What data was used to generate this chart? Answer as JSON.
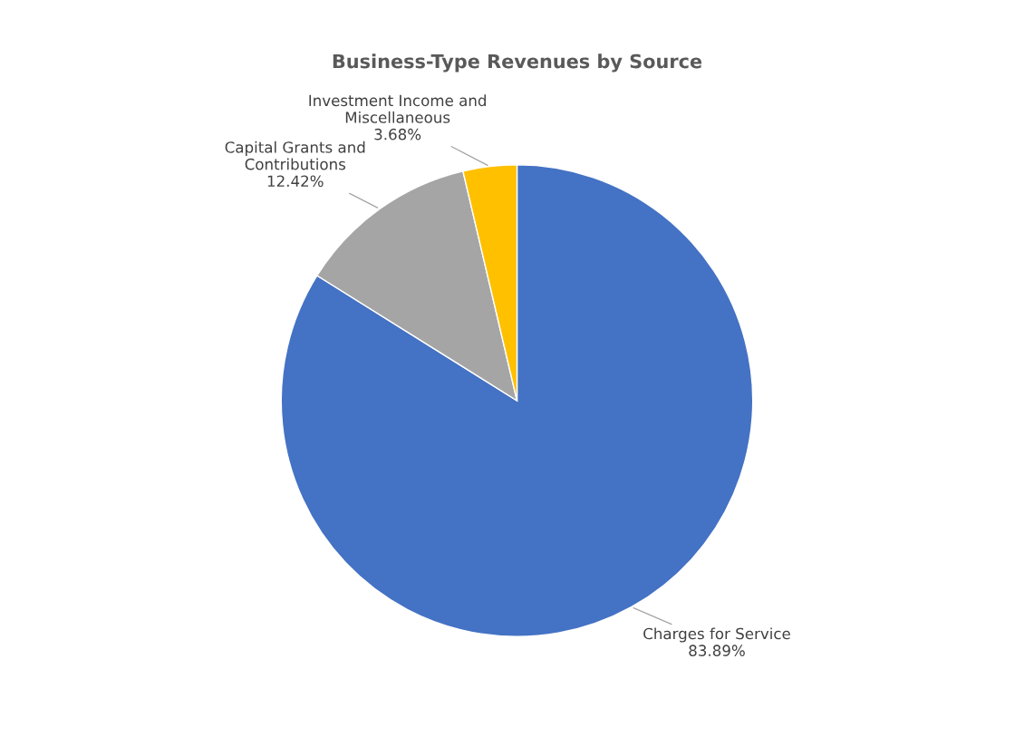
{
  "chart_data": {
    "type": "pie",
    "title": "Business-Type Revenues by Source",
    "categories": [
      "Charges for Service",
      "Capital Grants and\nContributions",
      "Investment Income and\nMiscellaneous"
    ],
    "values": [
      83.89,
      12.42,
      3.68
    ],
    "value_labels": [
      "83.89%",
      "12.42%",
      "3.68%"
    ],
    "colors": [
      "#4472c4",
      "#a5a5a5",
      "#ffc000"
    ],
    "legend": false
  }
}
